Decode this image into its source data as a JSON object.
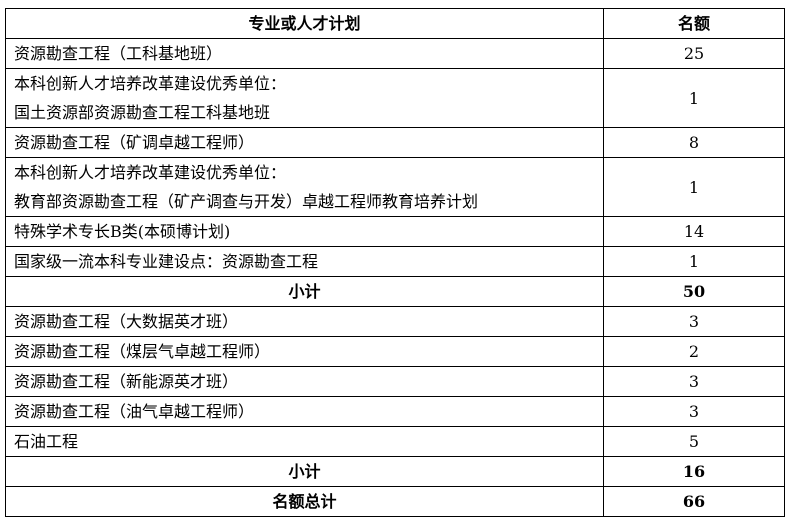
{
  "table": {
    "headers": [
      "专业或人才计划",
      "名额"
    ],
    "group1": [
      {
        "lines": [
          "资源勘查工程（工科基地班）"
        ],
        "count": "25"
      },
      {
        "lines": [
          "本科创新人才培养改革建设优秀单位：",
          "国土资源部资源勘查工程工科基地班"
        ],
        "count": "1"
      },
      {
        "lines": [
          "资源勘查工程（矿调卓越工程师）"
        ],
        "count": "8"
      },
      {
        "lines": [
          "本科创新人才培养改革建设优秀单位：",
          "教育部资源勘查工程（矿产调查与开发）卓越工程师教育培养计划"
        ],
        "count": "1"
      },
      {
        "lines": [
          "特殊学术专长B类(本硕博计划)"
        ],
        "count": "14"
      },
      {
        "lines": [
          "国家级一流本科专业建设点：资源勘查工程"
        ],
        "count": "1"
      }
    ],
    "subtotal1": {
      "label": "小计",
      "count": "50"
    },
    "group2": [
      {
        "lines": [
          "资源勘查工程（大数据英才班）"
        ],
        "count": "3"
      },
      {
        "lines": [
          "资源勘查工程（煤层气卓越工程师）"
        ],
        "count": "2"
      },
      {
        "lines": [
          "资源勘查工程（新能源英才班）"
        ],
        "count": "3"
      },
      {
        "lines": [
          "资源勘查工程（油气卓越工程师）"
        ],
        "count": "3"
      },
      {
        "lines": [
          "石油工程"
        ],
        "count": "5"
      }
    ],
    "subtotal2": {
      "label": "小计",
      "count": "16"
    },
    "total": {
      "label": "名额总计",
      "count": "66"
    }
  }
}
